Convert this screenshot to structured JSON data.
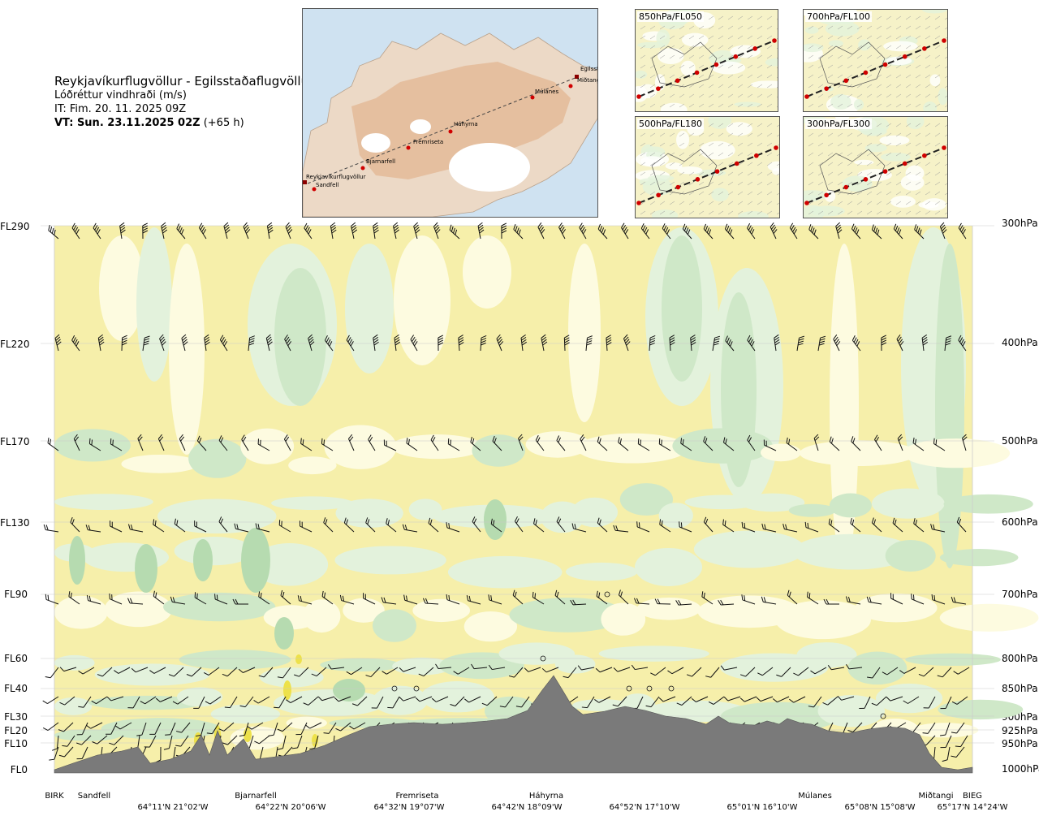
{
  "header": {
    "route": "Reykjavíkurflugvöllur - Egilsstaðaflugvöllur",
    "parameter": "Lóðréttur vindhraði (m/s)",
    "issue_time": "IT: Fim. 20. 11. 2025 09Z",
    "valid_time_bold": "VT: Sun. 23.11.2025 02Z",
    "valid_time_offset": "(+65 h)"
  },
  "map": {
    "labels": [
      "Reykjavíkurflugvöllur",
      "Sandfell",
      "Bjarnarfell",
      "Fremriseta",
      "Háhyrna",
      "Múlanes",
      "Egilsst",
      "Miðtangi"
    ]
  },
  "mini_panels": [
    {
      "label": "850hPa/FL050"
    },
    {
      "label": "700hPa/FL100"
    },
    {
      "label": "500hPa/FL180"
    },
    {
      "label": "300hPa/FL300"
    }
  ],
  "colors": {
    "yellow": "#f6efaa",
    "light_yellow": "#fdfbe0",
    "light_green": "#e3f2dc",
    "green": "#cfe8c8",
    "dark_green": "#b6dbb0",
    "bright_yellow": "#ede14a",
    "terrain": "#7a7a7a",
    "map_land": "#ecd9c6",
    "map_sea": "#cfe2f1"
  },
  "chart_data": {
    "type": "heatmap",
    "title": "Lóðréttur vindhraði (m/s)",
    "left_axis_levels": [
      "FL290",
      "FL220",
      "FL170",
      "FL130",
      "FL90",
      "FL60",
      "FL40",
      "FL30",
      "FL20",
      "FL10",
      "FL0"
    ],
    "right_axis_levels": [
      "300hPa",
      "400hPa",
      "500hPa",
      "600hPa",
      "700hPa",
      "800hPa",
      "850hPa",
      "900hPa",
      "925hPa",
      "950hPa",
      "1000hPa"
    ],
    "waypoints": [
      "BIRK",
      "Sandfell",
      "Bjarnarfell",
      "Fremriseta",
      "Háhyrna",
      "Múlanes",
      "Miðtangi",
      "BIEG"
    ],
    "coordinates": [
      "64°11'N 21°02'W",
      "64°22'N 20°06'W",
      "64°32'N 19°07'W",
      "64°42'N 18°09'W",
      "64°52'N 17°10'W",
      "65°01'N 16°10'W",
      "65°08'N 15°08'W",
      "65°17'N 14°24'W"
    ],
    "grid": true,
    "legend": "none"
  }
}
